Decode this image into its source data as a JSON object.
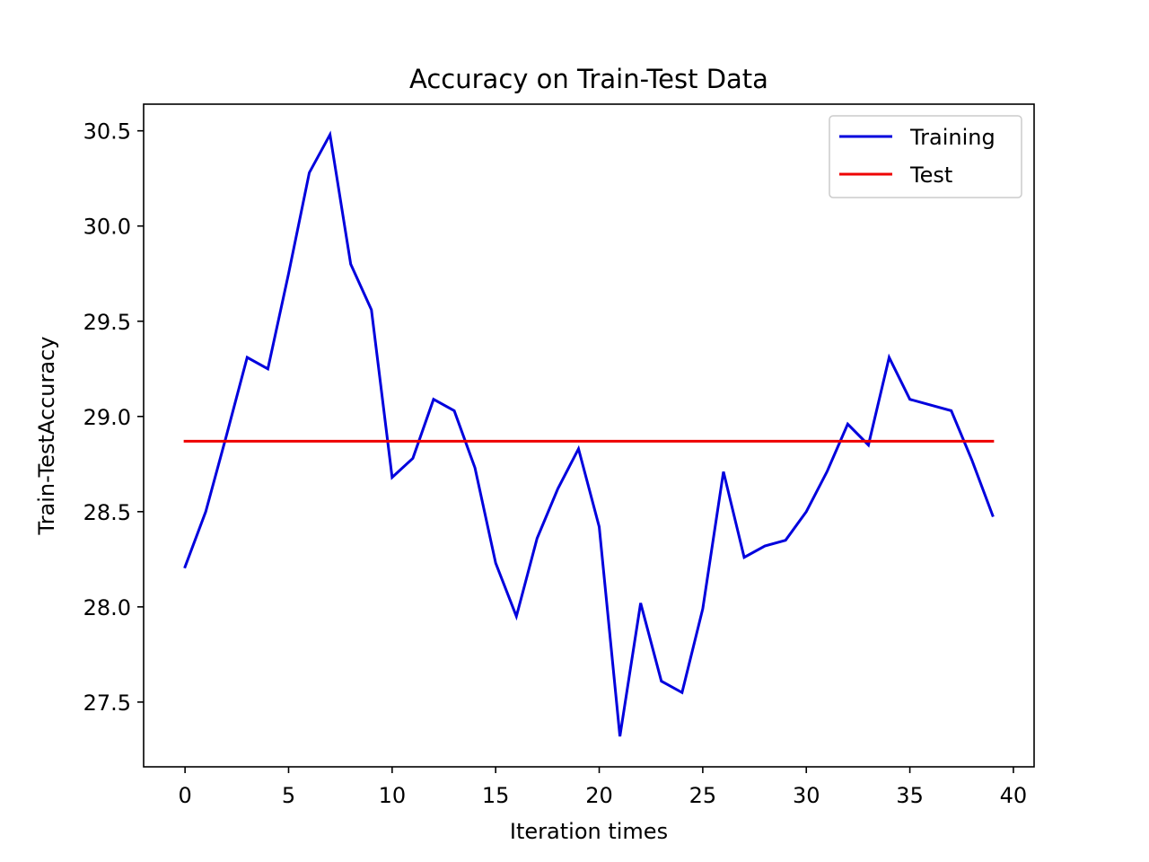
{
  "chart_data": {
    "type": "line",
    "title": "Accuracy on Train-Test Data",
    "xlabel": "Iteration times",
    "ylabel": "Train-TestAccuracy",
    "xlim": [
      -2,
      41
    ],
    "ylim": [
      27.16,
      30.64
    ],
    "x_ticks": [
      0,
      5,
      10,
      15,
      20,
      25,
      30,
      35,
      40
    ],
    "y_ticks": [
      27.5,
      28.0,
      28.5,
      29.0,
      29.5,
      30.0,
      30.5
    ],
    "y_tick_labels": [
      "27.5",
      "28.0",
      "28.5",
      "29.0",
      "29.5",
      "30.0",
      "30.5"
    ],
    "grid": false,
    "legend_position": "top-right",
    "series": [
      {
        "name": "Training",
        "color": "#0000dd",
        "x": [
          0,
          1,
          2,
          3,
          4,
          5,
          6,
          7,
          8,
          9,
          10,
          11,
          12,
          13,
          14,
          15,
          16,
          17,
          18,
          19,
          20,
          21,
          22,
          23,
          24,
          25,
          26,
          27,
          28,
          29,
          30,
          31,
          32,
          33,
          34,
          35,
          36,
          37,
          38,
          39
        ],
        "values": [
          28.21,
          28.5,
          28.9,
          29.31,
          29.25,
          29.75,
          30.28,
          30.48,
          29.8,
          29.56,
          28.68,
          28.78,
          29.09,
          29.03,
          28.73,
          28.23,
          27.95,
          28.36,
          28.62,
          28.83,
          28.42,
          27.32,
          28.02,
          27.61,
          27.55,
          27.99,
          28.71,
          28.26,
          28.32,
          28.35,
          28.5,
          28.71,
          28.96,
          28.85,
          29.31,
          29.09,
          29.06,
          29.03,
          28.77,
          28.48
        ]
      },
      {
        "name": "Test",
        "color": "#ee0000",
        "x": [
          0,
          39
        ],
        "values": [
          28.87,
          28.87
        ]
      }
    ]
  }
}
